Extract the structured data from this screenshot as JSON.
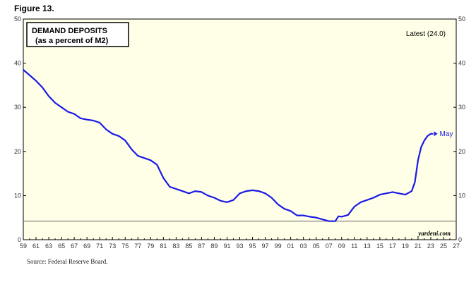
{
  "figure_label": "Figure 13.",
  "source": "Source: Federal Reserve Board.",
  "colors": {
    "plot_bg": "#ffffe8",
    "series": "#1a1ae6",
    "ref_line": "#666666"
  },
  "chart_data": {
    "type": "line",
    "title": "DEMAND DEPOSITS",
    "subtitle": "(as a percent of M2)",
    "xlabel": "",
    "ylabel": "",
    "annotation_latest": "Latest (24.0)",
    "annotation_end_label": "May",
    "credit": "yardeni.com",
    "xlim": [
      1959,
      2027
    ],
    "ylim": [
      0,
      50
    ],
    "x_tick_labels": [
      "59",
      "61",
      "63",
      "65",
      "67",
      "69",
      "71",
      "73",
      "75",
      "77",
      "79",
      "81",
      "83",
      "85",
      "87",
      "89",
      "91",
      "93",
      "95",
      "97",
      "99",
      "01",
      "03",
      "05",
      "07",
      "09",
      "11",
      "13",
      "15",
      "17",
      "19",
      "21",
      "23",
      "25",
      "27"
    ],
    "y_ticks": [
      0,
      10,
      20,
      30,
      40,
      50
    ],
    "reference_line": 4.2,
    "grid": false,
    "series": [
      {
        "x": [
          1959,
          1961,
          1962,
          1963,
          1964,
          1965,
          1966,
          1967,
          1968,
          1969,
          1970,
          1971,
          1972,
          1973,
          1974,
          1975,
          1976,
          1977,
          1978,
          1979,
          1980,
          1981,
          1982,
          1983,
          1984,
          1985,
          1986,
          1987,
          1988,
          1989,
          1990,
          1991,
          1992,
          1993,
          1994,
          1995,
          1996,
          1997,
          1998,
          1999,
          2000,
          2001,
          2002,
          2003,
          2004,
          2005,
          2006,
          2007,
          2008,
          2008.5,
          2009,
          2010,
          2011,
          2012,
          2013,
          2014,
          2015,
          2016,
          2017,
          2018,
          2019,
          2020,
          2020.5,
          2021,
          2021.5,
          2022,
          2022.5,
          2023,
          2023.4
        ],
        "y": [
          38.5,
          36,
          34.5,
          32.5,
          31,
          30,
          29,
          28.5,
          27.5,
          27.2,
          27,
          26.5,
          25,
          24,
          23.5,
          22.5,
          20.5,
          19,
          18.5,
          18,
          17,
          14,
          12,
          11.5,
          11,
          10.5,
          11,
          10.8,
          10,
          9.5,
          8.8,
          8.5,
          9,
          10.5,
          11,
          11.2,
          11,
          10.5,
          9.5,
          8,
          7,
          6.5,
          5.5,
          5.5,
          5.2,
          5,
          4.6,
          4.2,
          4.2,
          5.3,
          5.2,
          5.6,
          7.5,
          8.5,
          9,
          9.5,
          10.2,
          10.5,
          10.8,
          10.5,
          10.2,
          11,
          13,
          18,
          21,
          22.5,
          23.5,
          24,
          24.0
        ]
      }
    ]
  }
}
